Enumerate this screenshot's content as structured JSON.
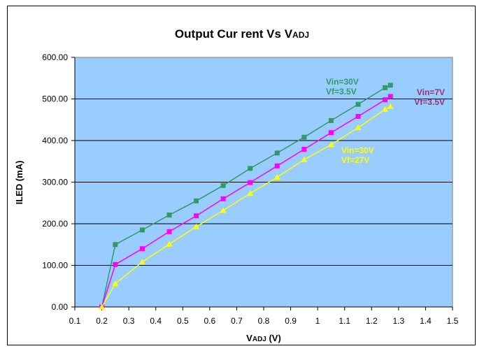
{
  "chart_data": {
    "type": "line",
    "title": "Output Cur rent Vs V",
    "title_sub": "ADJ",
    "xlabel": "V",
    "xlabel_sub": "ADJ",
    "xlabel_unit": " (V)",
    "ylabel": "ILED (mA)",
    "xlim": [
      0.1,
      1.5
    ],
    "ylim": [
      0,
      600
    ],
    "x_ticks": [
      "0.1",
      "0.2",
      "0.3",
      "0.4",
      "0.5",
      "0.6",
      "0.7",
      "0.8",
      "0.9",
      "1",
      "1.1",
      "1.2",
      "1.3",
      "1.4",
      "1.5"
    ],
    "y_ticks": [
      "0.00",
      "100.00",
      "200.00",
      "300.00",
      "400.00",
      "500.00",
      "600.00"
    ],
    "grid": "horizontal",
    "plot_background": "#99ccff",
    "series": [
      {
        "name_lines": [
          "Vin=30V",
          "Vf=3.5V"
        ],
        "color": "#339966",
        "marker": "square",
        "x": [
          0.2,
          0.25,
          0.35,
          0.45,
          0.55,
          0.65,
          0.75,
          0.85,
          0.95,
          1.05,
          1.15,
          1.25,
          1.27
        ],
        "y": [
          0,
          150,
          185,
          221,
          255,
          292,
          333,
          370,
          408,
          448,
          487,
          527,
          533
        ]
      },
      {
        "name_lines": [
          "Vin=7V",
          "Vf=3.5V"
        ],
        "color": "#ff00ff",
        "label_color": "#993366",
        "marker": "square",
        "x": [
          0.2,
          0.25,
          0.35,
          0.45,
          0.55,
          0.65,
          0.75,
          0.85,
          0.95,
          1.05,
          1.15,
          1.25,
          1.27
        ],
        "y": [
          0,
          102,
          140,
          181,
          219,
          260,
          299,
          339,
          379,
          419,
          458,
          498,
          506
        ]
      },
      {
        "name_lines": [
          "Vin=30V",
          "Vf=27V"
        ],
        "color": "#ffff00",
        "marker": "triangle",
        "x": [
          0.2,
          0.25,
          0.35,
          0.45,
          0.55,
          0.65,
          0.75,
          0.85,
          0.95,
          1.05,
          1.15,
          1.25,
          1.27
        ],
        "y": [
          0,
          56,
          108,
          151,
          193,
          232,
          273,
          312,
          354,
          390,
          431,
          475,
          482
        ]
      }
    ]
  }
}
